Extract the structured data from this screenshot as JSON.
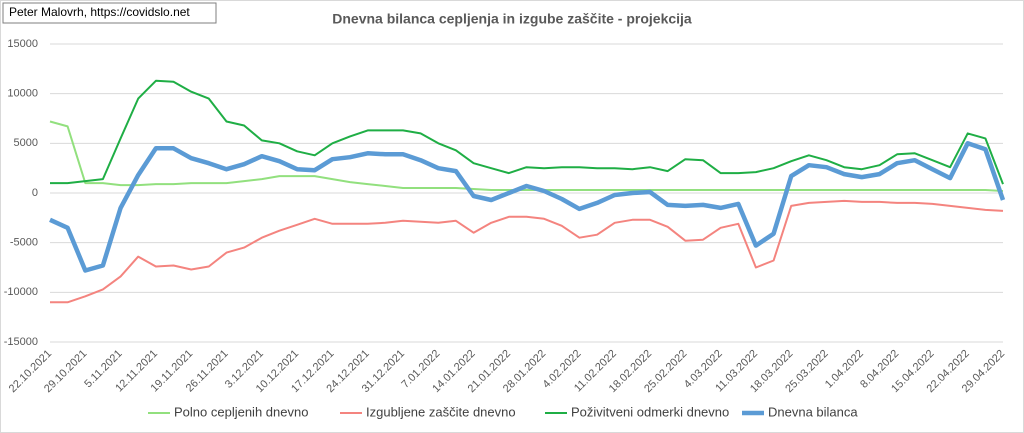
{
  "chart_data": {
    "type": "line",
    "title": "Dnevna bilanca cepljenja in izgube zaščite - projekcija",
    "source": "Peter Malovrh, https://covidslo.net",
    "categories": [
      "22.10.2021",
      null,
      "29.10.2021",
      null,
      "5.11.2021",
      null,
      "12.11.2021",
      null,
      "19.11.2021",
      null,
      "26.11.2021",
      null,
      "3.12.2021",
      null,
      "10.12.2021",
      null,
      "17.12.2021",
      null,
      "24.12.2021",
      null,
      "31.12.2021",
      null,
      "7.01.2022",
      null,
      "14.01.2022",
      null,
      "21.01.2022",
      null,
      "28.01.2022",
      null,
      "4.02.2022",
      null,
      "11.02.2022",
      null,
      "18.02.2022",
      null,
      "25.02.2022",
      null,
      "4.03.2022",
      null,
      "11.03.2022",
      null,
      "18.03.2022",
      null,
      "25.03.2022",
      null,
      "1.04.2022",
      null,
      "8.04.2022",
      null,
      "15.04.2022",
      null,
      "22.04.2022",
      null,
      "29.04.2022"
    ],
    "series": [
      {
        "name": "Polno cepljenih dnevno",
        "color": "#92e07e",
        "width": 2,
        "values": [
          7200,
          6700,
          1000,
          1000,
          800,
          800,
          900,
          900,
          1000,
          1000,
          1000,
          1200,
          1400,
          1700,
          1700,
          1700,
          1400,
          1100,
          900,
          700,
          500,
          500,
          500,
          500,
          400,
          300,
          300,
          300,
          300,
          300,
          300,
          300,
          300,
          300,
          300,
          300,
          300,
          300,
          300,
          300,
          300,
          300,
          300,
          300,
          300,
          300,
          300,
          300,
          300,
          300,
          300,
          300,
          300,
          300,
          200
        ]
      },
      {
        "name": "Izgubljene zaščite dnevno",
        "color": "#f4847f",
        "width": 2,
        "values": [
          -11000,
          -11000,
          -10400,
          -9700,
          -8400,
          -6400,
          -7400,
          -7300,
          -7700,
          -7400,
          -6000,
          -5500,
          -4500,
          -3800,
          -3200,
          -2600,
          -3100,
          -3100,
          -3100,
          -3000,
          -2800,
          -2900,
          -3000,
          -2800,
          -4000,
          -3000,
          -2400,
          -2400,
          -2600,
          -3300,
          -4500,
          -4200,
          -3000,
          -2700,
          -2700,
          -3400,
          -4800,
          -4700,
          -3500,
          -3100,
          -7500,
          -6800,
          -1300,
          -1000,
          -900,
          -800,
          -900,
          -900,
          -1000,
          -1000,
          -1100,
          -1300,
          -1500,
          -1700,
          -1800
        ]
      },
      {
        "name": "Poživitveni odmerki dnevno",
        "color": "#1fae45",
        "width": 2,
        "values": [
          1000,
          1000,
          1200,
          1400,
          5500,
          9500,
          11300,
          11200,
          10200,
          9500,
          7200,
          6800,
          5300,
          5000,
          4200,
          3800,
          5000,
          5700,
          6300,
          6300,
          6300,
          6000,
          5000,
          4300,
          3000,
          2500,
          2000,
          2600,
          2500,
          2600,
          2600,
          2500,
          2500,
          2400,
          2600,
          2200,
          3400,
          3300,
          2000,
          2000,
          2100,
          2500,
          3200,
          3800,
          3300,
          2600,
          2400,
          2800,
          3900,
          4000,
          3300,
          2600,
          6000,
          5500,
          900
        ]
      },
      {
        "name": "Dnevna bilanca",
        "color": "#5b9bd5",
        "width": 4.5,
        "values": [
          -2700,
          -3500,
          -7800,
          -7300,
          -1500,
          1800,
          4500,
          4500,
          3500,
          3000,
          2400,
          2900,
          3700,
          3200,
          2400,
          2300,
          3400,
          3600,
          4000,
          3900,
          3900,
          3300,
          2500,
          2200,
          -300,
          -700,
          0,
          700,
          200,
          -600,
          -1600,
          -1000,
          -200,
          0,
          100,
          -1200,
          -1300,
          -1200,
          -1500,
          -1100,
          -5300,
          -4100,
          1700,
          2800,
          2600,
          1900,
          1600,
          1900,
          3000,
          3300,
          2400,
          1500,
          5000,
          4400,
          -700
        ]
      }
    ],
    "ylim": [
      -15000,
      15000
    ],
    "yticks": [
      -15000,
      -10000,
      -5000,
      0,
      5000,
      10000,
      15000
    ],
    "grid": true,
    "legend": "bottom"
  }
}
